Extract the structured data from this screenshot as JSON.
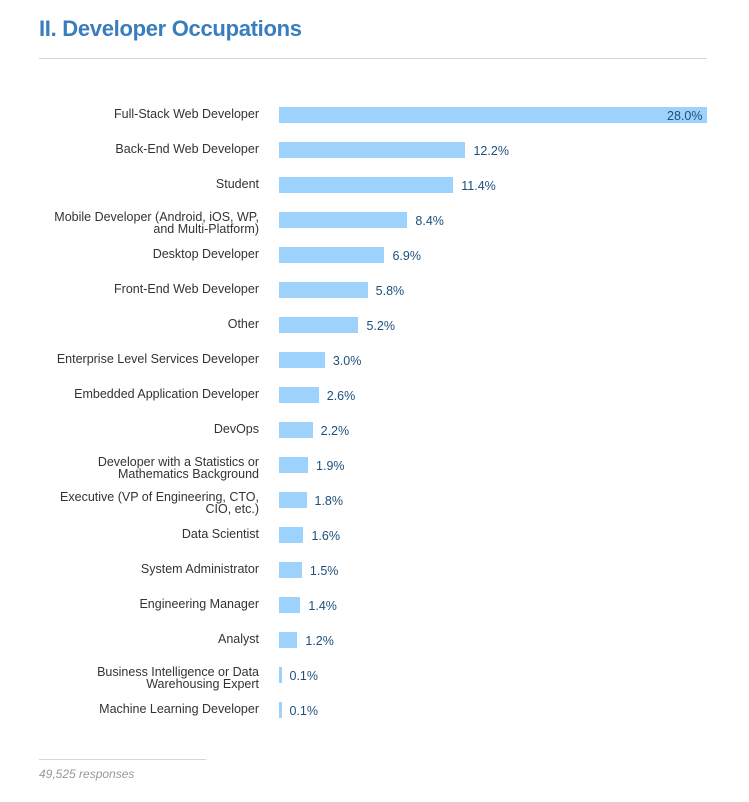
{
  "title": "II. Developer Occupations",
  "footer": "49,525 responses",
  "chart_data": {
    "type": "bar",
    "orientation": "horizontal",
    "bar_color": "#9cd2fb",
    "label_color": "#1d4f7c",
    "xlim": [
      0,
      28
    ],
    "grid": false,
    "categories": [
      [
        "Full-Stack Web Developer"
      ],
      [
        "Back-End Web Developer"
      ],
      [
        "Student"
      ],
      [
        "Mobile Developer (Android, iOS, WP,",
        "and Multi-Platform)"
      ],
      [
        "Desktop Developer"
      ],
      [
        "Front-End Web Developer"
      ],
      [
        "Other"
      ],
      [
        "Enterprise Level Services Developer"
      ],
      [
        "Embedded Application Developer"
      ],
      [
        "DevOps"
      ],
      [
        "Developer with a Statistics or",
        "Mathematics Background"
      ],
      [
        "Executive (VP of Engineering, CTO,",
        "CIO, etc.)"
      ],
      [
        "Data Scientist"
      ],
      [
        "System Administrator"
      ],
      [
        "Engineering Manager"
      ],
      [
        "Analyst"
      ],
      [
        "Business Intelligence or Data",
        "Warehousing Expert"
      ],
      [
        "Machine Learning Developer"
      ]
    ],
    "values": [
      28.0,
      12.2,
      11.4,
      8.4,
      6.9,
      5.8,
      5.2,
      3.0,
      2.6,
      2.2,
      1.9,
      1.8,
      1.6,
      1.5,
      1.4,
      1.2,
      0.1,
      0.1
    ],
    "value_labels": [
      "28.0%",
      "12.2%",
      "11.4%",
      "8.4%",
      "6.9%",
      "5.8%",
      "5.2%",
      "3.0%",
      "2.6%",
      "2.2%",
      "1.9%",
      "1.8%",
      "1.6%",
      "1.5%",
      "1.4%",
      "1.2%",
      "0.1%",
      "0.1%"
    ]
  }
}
